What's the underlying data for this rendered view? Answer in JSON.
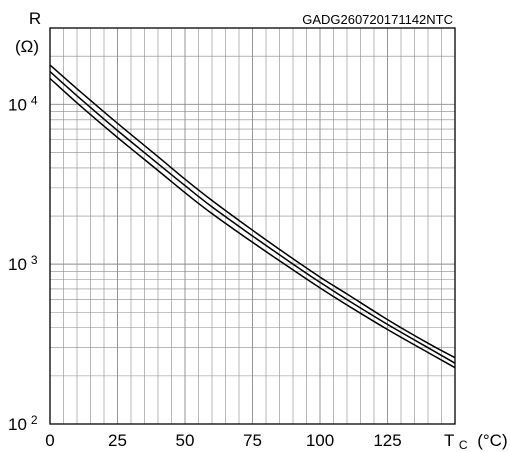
{
  "chart_data": {
    "type": "line",
    "code": "GADG260720171142NTC",
    "ylabel_symbol": "R",
    "ylabel_unit": "(Ω)",
    "xlabel_main": "T",
    "xlabel_sub": "C",
    "xlabel_unit": "(°C)",
    "y_scale": "log",
    "ylim": [
      100,
      30000
    ],
    "xlim": [
      0,
      150
    ],
    "grid": true,
    "x_ticks": [
      0,
      25,
      50,
      75,
      100,
      125
    ],
    "x_tick_labels": [
      "0",
      "25",
      "50",
      "75",
      "100",
      "125"
    ],
    "y_ticks": [
      {
        "base": "10",
        "exp": "2",
        "value": 100
      },
      {
        "base": "10",
        "exp": "3",
        "value": 1000
      },
      {
        "base": "10",
        "exp": "4",
        "value": 10000
      }
    ],
    "x": [
      0,
      10,
      25,
      40,
      50,
      60,
      75,
      90,
      100,
      110,
      125,
      140,
      150
    ],
    "series": [
      {
        "values": [
          17600,
          12500,
          7600,
          4700,
          3400,
          2500,
          1630,
          1080,
          830,
          650,
          450,
          320,
          260
        ]
      },
      {
        "values": [
          16000,
          11300,
          6850,
          4250,
          3100,
          2280,
          1500,
          1000,
          770,
          600,
          420,
          300,
          240
        ]
      },
      {
        "values": [
          14500,
          10200,
          6200,
          3850,
          2800,
          2070,
          1370,
          920,
          710,
          555,
          390,
          280,
          225
        ]
      }
    ],
    "line_color": "#000000",
    "grid_color": "#8a8a8a"
  }
}
